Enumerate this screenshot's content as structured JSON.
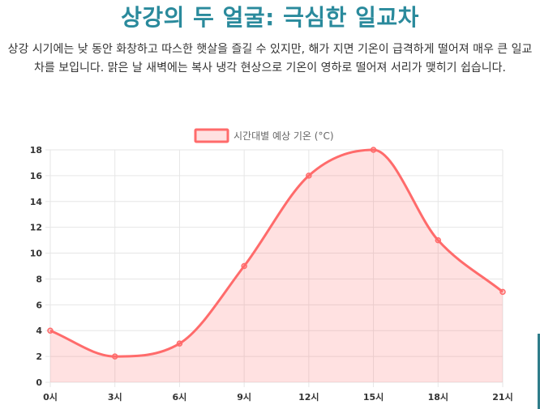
{
  "page": {
    "title": "상강의 두 얼굴: 극심한 일교차",
    "description": "상강 시기에는 낮 동안 화창하고 따스한 햇살을 즐길 수 있지만, 해가 지면 기온이 급격하게 떨어져 매우 큰 일교차를 보입니다. 맑은 날 새벽에는 복사 냉각 현상으로 기온이 영하로 떨어져 서리가 맺히기 쉽습니다."
  },
  "colors": {
    "title": "#2a8a9c",
    "line": "#ff6b6b",
    "fill": "rgba(255, 107, 107, 0.2)",
    "grid": "#e6e6e6",
    "axis_text": "#333333"
  },
  "chart_data": {
    "type": "area",
    "categories": [
      "0시",
      "3시",
      "6시",
      "9시",
      "12시",
      "15시",
      "18시",
      "21시"
    ],
    "series": [
      {
        "name": "시간대별 예상 기온 (°C)",
        "values": [
          4,
          2,
          3,
          9,
          16,
          18,
          11,
          7
        ]
      }
    ],
    "ylim": [
      0,
      18
    ],
    "yticks": [
      0,
      2,
      4,
      6,
      8,
      10,
      12,
      14,
      16,
      18
    ],
    "grid": true,
    "legend_position": "top-center",
    "title": "",
    "xlabel": "",
    "ylabel": ""
  }
}
